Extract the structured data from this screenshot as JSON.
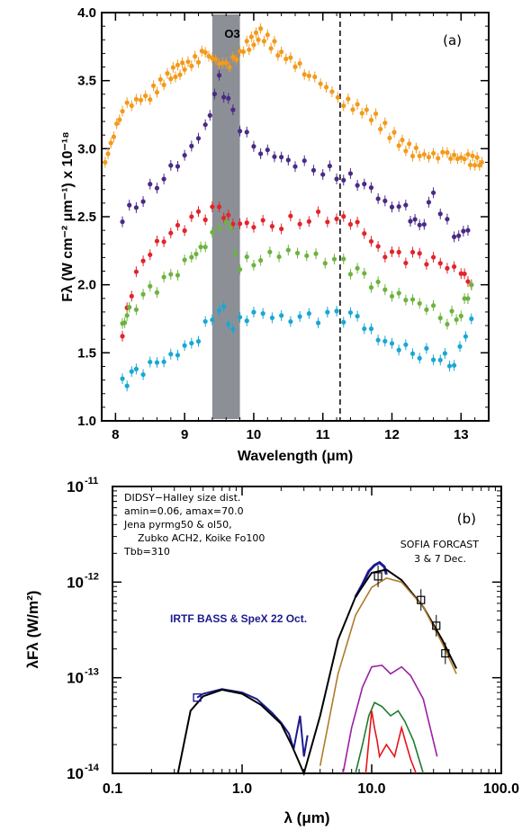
{
  "chart_data": [
    {
      "type": "scatter",
      "panel_label": "(a)",
      "xlabel": "Wavelength (μm)",
      "ylabel": "Fλ (W cm⁻² μm⁻¹) x 10⁻¹⁸",
      "xlim": [
        7.8,
        13.4
      ],
      "ylim": [
        1.0,
        4.0
      ],
      "xticks": [
        "8",
        "9",
        "10",
        "11",
        "12",
        "13"
      ],
      "yticks": [
        "1.0",
        "1.5",
        "2.0",
        "2.5",
        "3.0",
        "3.5",
        "4.0"
      ],
      "band": {
        "label": "O3",
        "x0": 9.4,
        "x1": 9.8,
        "color": "#8c9096"
      },
      "vline_x": 11.25,
      "series_colors": [
        "#f39a1b",
        "#4a2a86",
        "#e2242c",
        "#6db33f",
        "#1aa7d4"
      ],
      "series": [
        {
          "color": "#f39a1b",
          "x": [
            7.85,
            8.1,
            8.5,
            8.8,
            9.0,
            9.3,
            9.6,
            9.9,
            10.1,
            10.4,
            10.8,
            11.3,
            11.7,
            12.1,
            12.4,
            12.8,
            13.1,
            13.3
          ],
          "y": [
            2.9,
            3.3,
            3.4,
            3.55,
            3.6,
            3.7,
            3.6,
            3.75,
            3.85,
            3.7,
            3.55,
            3.35,
            3.25,
            3.05,
            2.95,
            2.95,
            2.92,
            2.9
          ]
        },
        {
          "color": "#4a2a86",
          "x": [
            8.1,
            8.4,
            8.7,
            9.0,
            9.3,
            9.5,
            9.7,
            10.0,
            10.3,
            10.6,
            11.0,
            11.3,
            11.6,
            11.9,
            12.2,
            12.4,
            12.6,
            12.9,
            13.1
          ],
          "y": [
            2.5,
            2.65,
            2.8,
            2.95,
            3.15,
            3.5,
            3.25,
            3.0,
            2.95,
            2.9,
            2.85,
            2.8,
            2.75,
            2.6,
            2.55,
            2.4,
            2.65,
            2.35,
            2.4
          ]
        },
        {
          "color": "#e2242c",
          "x": [
            8.1,
            8.3,
            8.6,
            8.9,
            9.2,
            9.5,
            9.7,
            10.0,
            10.4,
            10.8,
            11.2,
            11.5,
            11.8,
            12.1,
            12.4,
            12.7,
            13.0,
            13.15
          ],
          "y": [
            1.65,
            2.1,
            2.3,
            2.4,
            2.5,
            2.55,
            2.45,
            2.45,
            2.45,
            2.5,
            2.5,
            2.45,
            2.25,
            2.2,
            2.2,
            2.15,
            2.1,
            2.0
          ]
        },
        {
          "color": "#6db33f",
          "x": [
            8.1,
            8.2,
            8.5,
            8.8,
            9.1,
            9.3,
            9.6,
            9.8,
            10.1,
            10.5,
            10.9,
            11.3,
            11.6,
            11.9,
            12.2,
            12.5,
            12.8,
            13.0,
            13.15
          ],
          "y": [
            1.7,
            1.8,
            1.95,
            2.05,
            2.2,
            2.3,
            2.5,
            2.15,
            2.2,
            2.25,
            2.2,
            2.15,
            2.05,
            1.95,
            1.9,
            1.85,
            1.75,
            1.8,
            2.0
          ]
        },
        {
          "color": "#1aa7d4",
          "x": [
            8.1,
            8.3,
            8.6,
            8.9,
            9.2,
            9.5,
            9.7,
            10.0,
            10.4,
            10.8,
            11.2,
            11.5,
            11.8,
            12.1,
            12.4,
            12.7,
            12.9,
            13.15
          ],
          "y": [
            1.27,
            1.35,
            1.42,
            1.5,
            1.62,
            1.85,
            1.7,
            1.8,
            1.75,
            1.75,
            1.77,
            1.75,
            1.6,
            1.55,
            1.5,
            1.48,
            1.42,
            1.75
          ]
        }
      ]
    },
    {
      "type": "line",
      "panel_label": "(b)",
      "xscale": "log",
      "yscale": "log",
      "xlabel": "λ (μm)",
      "ylabel": "λFλ (W/m²)",
      "xlim": [
        0.1,
        100.0
      ],
      "ylim": [
        1e-14,
        1e-11
      ],
      "xticks": [
        "0.1",
        "1.0",
        "10.0",
        "100.0"
      ],
      "yticks": [
        "10",
        "10",
        "10",
        "10"
      ],
      "ytick_exponents": [
        "-14",
        "-13",
        "-12",
        "-11"
      ],
      "notes": [
        "DIDSY−Halley size dist.",
        "amin=0.06, amax=70.0",
        "Jena pyrmg50 & ol50,",
        "Zubko ACH2, Koike Fo100",
        "Tbb=310"
      ],
      "legend_sofia": [
        "SOFIA FORCAST",
        "3 & 7 Dec."
      ],
      "legend_irtf": "IRTF BASS & SpeX 22 Oct.",
      "series": [
        {
          "color": "#000000",
          "x": [
            0.32,
            0.4,
            0.5,
            0.7,
            1.0,
            1.4,
            2.0,
            2.4,
            3.0,
            4.0,
            5.5,
            7.5,
            10.0,
            13.0,
            17.0,
            25.0,
            35.0,
            45.0
          ],
          "y": [
            1e-14,
            4.5e-14,
            6.4e-14,
            7.5e-14,
            6.8e-14,
            5.2e-14,
            3.3e-14,
            2e-14,
            1e-14,
            4e-14,
            2.5e-13,
            7e-13,
            1.25e-12,
            1.35e-12,
            1.05e-12,
            5.5e-13,
            2.5e-13,
            1.25e-13
          ]
        },
        {
          "color": "#b07a2a",
          "x": [
            4.0,
            5.5,
            7.5,
            10.0,
            13.0,
            17.0,
            25.0,
            35.0,
            45.0
          ],
          "y": [
            1.2e-14,
            1.1e-13,
            4.5e-13,
            8.8e-13,
            1.1e-12,
            1e-12,
            5.5e-13,
            2.3e-13,
            1.1e-13
          ]
        },
        {
          "color": "#9b1fa4",
          "x": [
            6.0,
            7.0,
            8.5,
            10.0,
            12.0,
            14.0,
            17.0,
            20.0,
            25.0,
            32.0
          ],
          "y": [
            1e-14,
            3e-14,
            8e-14,
            1.3e-13,
            1.35e-13,
            1.1e-13,
            1.3e-13,
            1.05e-13,
            6e-14,
            1.5e-14
          ]
        },
        {
          "color": "#1e7a2e",
          "x": [
            7.5,
            8.5,
            9.5,
            10.5,
            12.0,
            14.0,
            16.0,
            18.0,
            21.0,
            25.0
          ],
          "y": [
            1e-14,
            2e-14,
            4e-14,
            5.5e-14,
            5e-14,
            4e-14,
            4.5e-14,
            3.5e-14,
            2.2e-14,
            1e-14
          ]
        },
        {
          "color": "#e8141c",
          "x": [
            9.0,
            10.0,
            10.5,
            11.0,
            11.5,
            13.0,
            15.0,
            17.0,
            18.5,
            20.0,
            22.0
          ],
          "y": [
            1e-14,
            4.5e-14,
            3e-14,
            2.2e-14,
            1.5e-14,
            2e-14,
            1.5e-14,
            3e-14,
            2e-14,
            1.4e-14,
            1e-14
          ]
        }
      ],
      "irtf_spectrum": {
        "color": "#1b1a8f",
        "x": [
          0.45,
          0.5,
          0.7,
          1.0,
          1.3,
          1.7,
          2.0,
          2.3,
          2.5,
          2.8,
          3.0,
          3.2,
          7.5,
          8.5,
          9.5,
          10.5,
          11.5,
          12.5,
          13.0
        ],
        "y": [
          6.2e-14,
          6.8e-14,
          7.6e-14,
          7e-14,
          6e-14,
          4.3e-14,
          3.4e-14,
          2.6e-14,
          1.8e-14,
          4e-14,
          1.5e-14,
          2.5e-14,
          7e-13,
          9.5e-13,
          1.3e-12,
          1.5e-12,
          1.6e-12,
          1.45e-12,
          1.2e-12
        ]
      },
      "sofia_points": {
        "x": [
          11.2,
          24.0,
          31.5,
          37.0
        ],
        "y": [
          1.15e-12,
          6.5e-13,
          3.5e-13,
          1.8e-13
        ]
      },
      "uv_point": {
        "x": 0.45,
        "y": 6.2e-14
      }
    }
  ]
}
